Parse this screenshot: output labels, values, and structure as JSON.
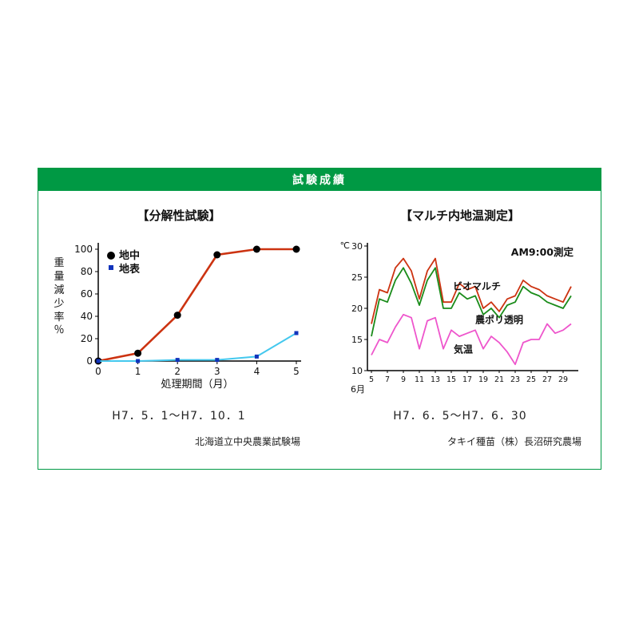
{
  "panel": {
    "header": {
      "label": "試験成績",
      "bg": "#009944",
      "text_color": "#ffffff"
    },
    "border_color": "#009944"
  },
  "left_section": {
    "title": "【分解性試験】",
    "caption": "H7．5．1〜H7．10．1",
    "source": "北海道立中央農業試験場"
  },
  "right_section": {
    "title": "【マルチ内地温測定】",
    "caption": "H7．6．5〜H7．6．30",
    "source": "タキイ種苗（株）長沼研究農場"
  },
  "chart_data": [
    {
      "type": "line",
      "title": "分解性試験",
      "xlabel": "処理期間（月）",
      "ylabel": "重量減少率％",
      "x": [
        0,
        1,
        2,
        3,
        4,
        5
      ],
      "xlim": [
        0,
        5
      ],
      "ylim": [
        0,
        100
      ],
      "yticks": [
        0,
        20,
        40,
        60,
        80,
        100
      ],
      "grid": false,
      "legend_position": "top-left",
      "series": [
        {
          "name": "地中",
          "color": "#cc3311",
          "marker": "circle",
          "marker_color": "#000000",
          "values": [
            0,
            7,
            41,
            95,
            100,
            100
          ]
        },
        {
          "name": "地表",
          "color": "#44c8ee",
          "marker": "square",
          "marker_color": "#1133bb",
          "values": [
            0,
            0,
            1,
            1,
            4,
            25
          ]
        }
      ]
    },
    {
      "type": "line",
      "title": "マルチ内地温測定",
      "annotation": "AM9:00測定",
      "unit_label": "℃",
      "month_label": "6月",
      "x": [
        5,
        6,
        7,
        8,
        9,
        10,
        11,
        12,
        13,
        14,
        15,
        16,
        17,
        18,
        19,
        20,
        21,
        22,
        23,
        24,
        25,
        26,
        27,
        28,
        29,
        30
      ],
      "xticks": [
        5,
        7,
        9,
        11,
        13,
        15,
        17,
        19,
        21,
        23,
        25,
        27,
        29
      ],
      "xlim": [
        4.5,
        30.5
      ],
      "ylim": [
        10,
        30
      ],
      "yticks": [
        10,
        15,
        20,
        25,
        30
      ],
      "grid": false,
      "series": [
        {
          "name": "ビオマルチ",
          "color": "#cc3311",
          "label_x": 15.2,
          "label_y": 23.0,
          "values": [
            17.5,
            23,
            22.5,
            26.5,
            28,
            26,
            21.5,
            26,
            28,
            21,
            21,
            24,
            23,
            23.5,
            20,
            21,
            19.5,
            21.5,
            22,
            24.5,
            23.5,
            23,
            22,
            21.5,
            21,
            23.5
          ]
        },
        {
          "name": "農ポリ透明",
          "color": "#1a8c1a",
          "label_x": 18.0,
          "label_y": 17.6,
          "values": [
            15.5,
            21.5,
            21,
            24.5,
            26.5,
            24,
            20.5,
            24.5,
            26.5,
            20,
            20,
            22.5,
            21.5,
            22,
            19,
            20,
            18.5,
            20.5,
            21,
            23.5,
            22.5,
            22,
            21,
            20.5,
            20,
            22
          ]
        },
        {
          "name": "気温",
          "color": "#ee55cc",
          "label_x": 15.3,
          "label_y": 12.9,
          "values": [
            12.5,
            15,
            14.5,
            17,
            19,
            18.5,
            13.5,
            18,
            18.5,
            13.5,
            16.5,
            15.5,
            16,
            16.5,
            13.5,
            15.5,
            14.5,
            13,
            11,
            14.5,
            15,
            15,
            17.5,
            16,
            16.5,
            17.5
          ]
        }
      ]
    }
  ]
}
